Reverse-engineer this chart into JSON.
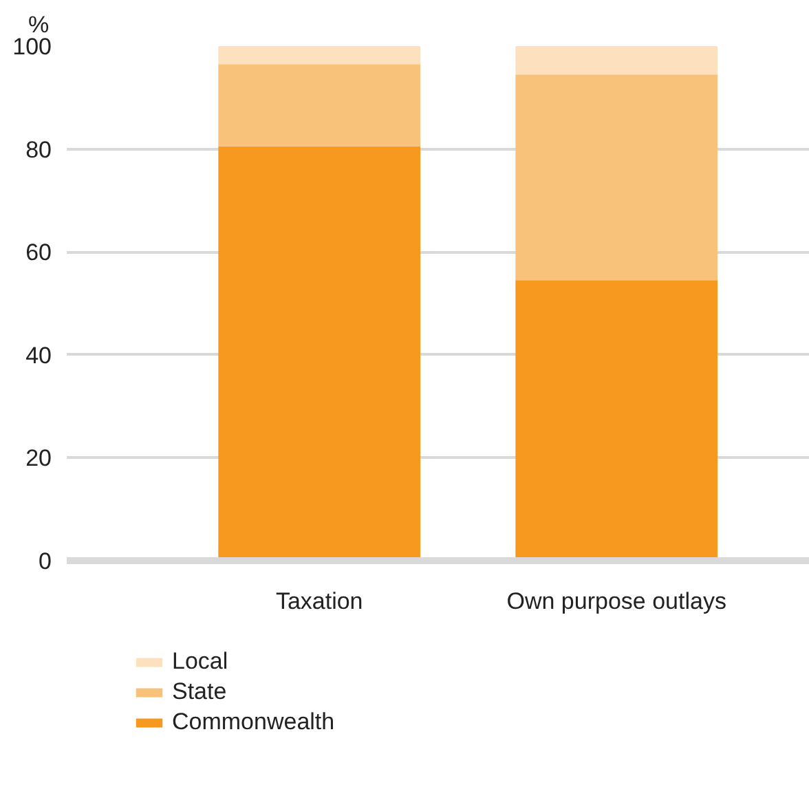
{
  "chart_data": {
    "type": "bar",
    "stacked": true,
    "ylabel": "%",
    "categories": [
      "Taxation",
      "Own purpose outlays"
    ],
    "series": [
      {
        "name": "Commonwealth",
        "color": "#f7991f",
        "values": [
          80.5,
          54.5
        ]
      },
      {
        "name": "State",
        "color": "#f9c27a",
        "values": [
          16,
          40
        ]
      },
      {
        "name": "Local",
        "color": "#fde0bd",
        "values": [
          3.5,
          5.5
        ]
      }
    ],
    "ylim": [
      0,
      100
    ],
    "yticks": [
      0,
      20,
      40,
      60,
      80,
      100
    ],
    "grid": "y",
    "legend": "bottom left"
  }
}
